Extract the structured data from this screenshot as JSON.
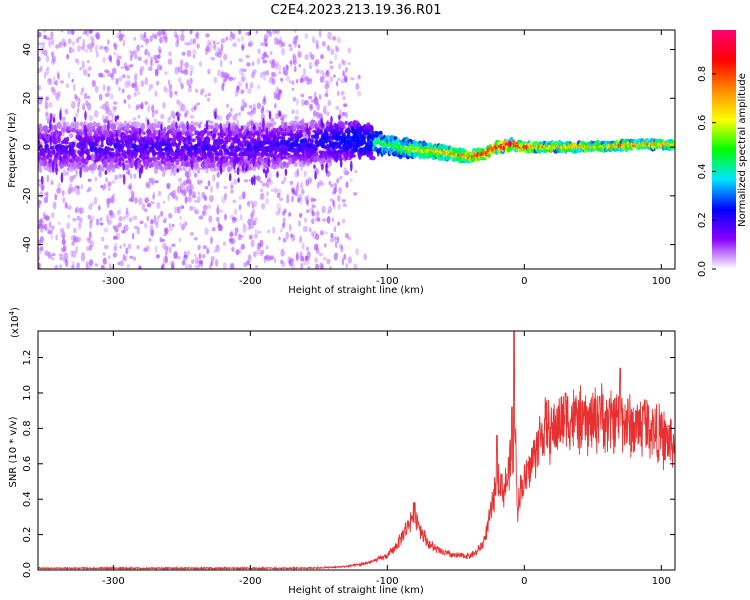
{
  "title": "C2E4.2023.213.19.36.R01",
  "chart_data": [
    {
      "type": "heatmap",
      "xlabel": "Height of straight line (km)",
      "ylabel": "Frequency (Hz)",
      "xlim": [
        -355,
        110
      ],
      "ylim": [
        -50,
        48
      ],
      "x_ticks": [
        -300,
        -200,
        -100,
        0,
        100
      ],
      "y_ticks": [
        -40,
        -20,
        0,
        20,
        40
      ],
      "colorbar": {
        "label": "Normalized spectral amplitude",
        "range": [
          0.0,
          0.98
        ],
        "ticks": [
          0.0,
          0.2,
          0.4,
          0.6,
          0.8
        ],
        "colormap": [
          "#ffffff",
          "#8800ff",
          "#0000ff",
          "#00e5ff",
          "#00ff00",
          "#ffff00",
          "#ff8800",
          "#ff0000",
          "#ff0077"
        ]
      },
      "ridge": {
        "x": [
          -355,
          -300,
          -200,
          -150,
          -120,
          -100,
          -80,
          -60,
          -50,
          -40,
          -30,
          -20,
          -10,
          0,
          20,
          50,
          80,
          110
        ],
        "center_hz": [
          0,
          0,
          0,
          2,
          3,
          1,
          -1,
          -2,
          -3,
          -4,
          -3,
          0,
          1,
          0,
          0,
          0,
          1,
          1
        ],
        "half_width_hz": [
          8,
          8,
          8,
          7,
          6,
          5,
          4,
          3.5,
          3,
          2.5,
          2.5,
          2.5,
          2.5,
          2,
          2,
          2,
          2,
          2
        ],
        "peak_amplitude": [
          0.18,
          0.2,
          0.2,
          0.25,
          0.4,
          0.5,
          0.6,
          0.7,
          0.75,
          0.8,
          0.85,
          0.85,
          0.95,
          0.8,
          0.7,
          0.7,
          0.75,
          0.7
        ]
      },
      "noise_extent_x": [
        -355,
        -145
      ]
    },
    {
      "type": "line",
      "xlabel": "Height of straight line (km)",
      "ylabel": "SNR (10 * v/v)",
      "yscale_label": "(x10",
      "yscale_exp": "4",
      "yscale_close": ")",
      "xlim": [
        -355,
        110
      ],
      "ylim": [
        0.0,
        1.35
      ],
      "x_ticks": [
        -300,
        -200,
        -100,
        0,
        100
      ],
      "y_ticks": [
        0.0,
        0.2,
        0.4,
        0.6,
        0.8,
        1.0,
        1.2
      ],
      "line_color": "#e83030",
      "series": [
        {
          "x": [
            -355,
            -300,
            -250,
            -200,
            -160,
            -140,
            -130,
            -120,
            -110,
            -100,
            -95,
            -90,
            -85,
            -82,
            -80,
            -78,
            -75,
            -70,
            -65,
            -60,
            -55,
            -50,
            -45,
            -40,
            -35,
            -30,
            -25,
            -22,
            -20,
            -18,
            -15,
            -12,
            -10,
            -8,
            -7,
            -6,
            -5,
            -3,
            0,
            3,
            6,
            10,
            15,
            20,
            25,
            30,
            35,
            40,
            45,
            50,
            55,
            60,
            65,
            70,
            75,
            80,
            85,
            90,
            95,
            100,
            105,
            110
          ],
          "y": [
            0.01,
            0.01,
            0.01,
            0.01,
            0.01,
            0.015,
            0.02,
            0.03,
            0.05,
            0.08,
            0.12,
            0.18,
            0.25,
            0.3,
            0.32,
            0.28,
            0.22,
            0.15,
            0.12,
            0.1,
            0.09,
            0.08,
            0.08,
            0.08,
            0.1,
            0.15,
            0.3,
            0.42,
            0.55,
            0.5,
            0.45,
            0.52,
            0.62,
            0.55,
            0.9,
            0.6,
            0.35,
            0.45,
            0.5,
            0.55,
            0.62,
            0.72,
            0.8,
            0.78,
            0.82,
            0.88,
            0.85,
            0.84,
            0.82,
            0.85,
            0.86,
            0.84,
            0.85,
            0.88,
            0.83,
            0.8,
            0.82,
            0.82,
            0.78,
            0.75,
            0.73,
            0.7
          ],
          "spikes": [
            {
              "x": -7.5,
              "y": 1.35
            },
            {
              "x": -9,
              "y": 0.92
            },
            {
              "x": 30,
              "y": 1.0
            },
            {
              "x": 55,
              "y": 0.98
            },
            {
              "x": 70,
              "y": 1.14
            },
            {
              "x": 88,
              "y": 0.96
            },
            {
              "x": -80,
              "y": 0.38
            },
            {
              "x": -20,
              "y": 0.76
            }
          ],
          "noise_amplitude": 0.12
        }
      ]
    }
  ]
}
